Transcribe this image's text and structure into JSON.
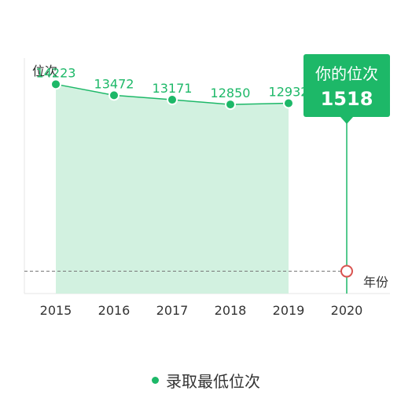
{
  "chart_data": {
    "type": "area",
    "ylabel": "位次",
    "xlabel": "年份",
    "categories": [
      "2015",
      "2016",
      "2017",
      "2018",
      "2019",
      "2020"
    ],
    "series": [
      {
        "name": "录取最低位次",
        "x": [
          "2015",
          "2016",
          "2017",
          "2018",
          "2019"
        ],
        "values": [
          14223,
          13472,
          13171,
          12850,
          12932
        ]
      }
    ],
    "marker": {
      "x": "2020",
      "value": 1518,
      "label": "你的位次",
      "value_text": "1518"
    },
    "ylim": [
      0,
      16000
    ],
    "y_inverted": false,
    "grid": false,
    "legend_position": "bottom-center",
    "colors": {
      "series": "#1db868",
      "area": "#d2f1e0",
      "marker_ring": "#d9534f",
      "dashed_line": "#777777",
      "tooltip_bg": "#1db868"
    }
  }
}
